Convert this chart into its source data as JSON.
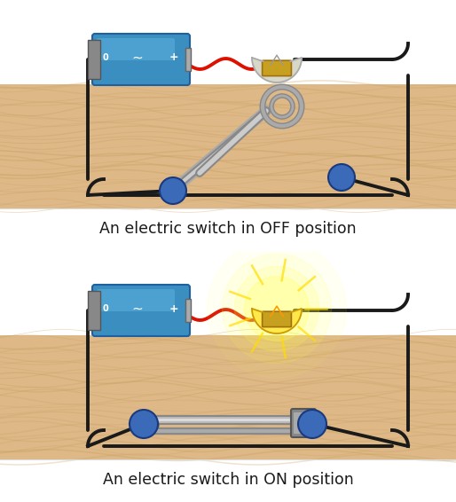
{
  "wood_bg": "#DEB887",
  "wood_grain_color": "#C8A060",
  "wire_color": "#1a1a1a",
  "wire_red": "#DD1100",
  "battery_body": "#3A8EC0",
  "battery_body_light": "#5AAEDC",
  "battery_end_gray": "#888888",
  "bulb_off_glass": "#D8D8C8",
  "bulb_off_outline": "#AAAAAA",
  "bulb_on_glass": "#FFE84A",
  "bulb_on_outline": "#CC9900",
  "bulb_base": "#C8A020",
  "bulb_glow_color": "#FFFF44",
  "pin_metal_light": "#BBBBBB",
  "pin_metal_dark": "#777777",
  "pin_clasp": "#666666",
  "node_color": "#3A6AB8",
  "node_edge": "#1a3a80",
  "white_bg": "#FFFFFF",
  "text_color": "#1a1a1a",
  "label_off": "An electric switch in OFF position",
  "label_on": "An electric switch in ON position",
  "label_fontsize": 12.5
}
